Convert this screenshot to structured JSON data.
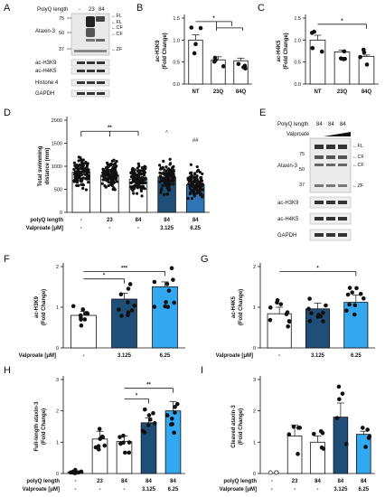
{
  "panel_letters": [
    "A",
    "B",
    "C",
    "D",
    "E",
    "F",
    "G",
    "H",
    "I"
  ],
  "blot_A": {
    "header": "PolyQ length",
    "lanes": [
      "-",
      "23",
      "84"
    ],
    "markers": [
      "75",
      "50",
      "37"
    ],
    "bands": [
      "ataxin-3",
      "ac-H3K9",
      "ac-H4K5",
      "Histone 4",
      "GAPDH"
    ],
    "labels": {
      "ataxin3": "Ataxin-3",
      "h3k9": "ac-H3K9",
      "h4k5": "ac-H4K5",
      "h4": "Histone 4",
      "gapdh": "GAPDH"
    },
    "arrows": [
      "FL",
      "FL",
      "CF",
      "CF",
      "ZF"
    ]
  },
  "blot_E": {
    "header": "PolyQ length",
    "lanes": [
      "84",
      "84",
      "84"
    ],
    "valproate": "Valproate",
    "markers": [
      "75",
      "50",
      "37"
    ],
    "labels": {
      "ataxin3": "Ataxin-3",
      "h3k9": "ac-H3K9",
      "h4k5": "ac-H4K5",
      "gapdh": "GAPDH"
    },
    "arrows": [
      "FL",
      "CF",
      "CF",
      "ZF"
    ]
  },
  "colors": {
    "white": "#ffffff",
    "navy": "#1f4e79",
    "mid": "#2e75b6",
    "light": "#33a7f0"
  },
  "chart_data": [
    {
      "id": "B",
      "type": "bar",
      "ylabel": "ac-H3K9\n(Fold Change)",
      "categories": [
        "NT",
        "23Q",
        "84Q"
      ],
      "values": [
        1.0,
        0.55,
        0.53
      ],
      "errors": [
        0.12,
        0.07,
        0.06
      ],
      "ylim": [
        0,
        1.5
      ],
      "yticks": [
        "0.0",
        "0.5",
        "1.0",
        "1.5"
      ],
      "sig": [
        "*"
      ]
    },
    {
      "id": "C",
      "type": "bar",
      "ylabel": "ac-H4K5\n(Fold Change)",
      "categories": [
        "NT",
        "23Q",
        "84Q"
      ],
      "values": [
        1.0,
        0.73,
        0.63
      ],
      "errors": [
        0.11,
        0.04,
        0.03
      ],
      "ylim": [
        0,
        1.5
      ],
      "yticks": [
        "0.0",
        "0.5",
        "1.0",
        "1.5"
      ],
      "sig": [
        "*"
      ]
    },
    {
      "id": "D",
      "type": "bar",
      "ylabel": "Total swimming\ndistance (mm)",
      "ylim": [
        0,
        2000
      ],
      "yticks": [
        "0",
        "500",
        "1000",
        "1500",
        "2000"
      ],
      "row_labels": [
        "polyQ length",
        "Valproate [μM]"
      ],
      "row1": [
        "-",
        "23",
        "84",
        "84",
        "84"
      ],
      "row2": [
        "-",
        "-",
        "-",
        "3.125",
        "6.25"
      ],
      "values": [
        870,
        810,
        720,
        770,
        600
      ],
      "errors": [
        30,
        25,
        25,
        35,
        40
      ],
      "sig": [
        "**",
        "^",
        "##"
      ]
    },
    {
      "id": "F",
      "type": "bar",
      "ylabel": "ac-H3K9\n(Fold Change)",
      "xlabel_row": "Valproate [μM]",
      "categories": [
        "-",
        "3.125",
        "6.25"
      ],
      "values": [
        1.0,
        1.5,
        1.88
      ],
      "errors": [
        0.12,
        0.18,
        0.15
      ],
      "ylim": [
        0,
        2.5
      ],
      "yticks": [
        "0",
        "1",
        "2"
      ],
      "sig": [
        "***",
        "*"
      ]
    },
    {
      "id": "G",
      "type": "bar",
      "ylabel": "ac-H4K5\n(Fold Change)",
      "xlabel_row": "Valproate [μM]",
      "categories": [
        "-",
        "3.125",
        "6.25"
      ],
      "values": [
        1.05,
        1.2,
        1.4
      ],
      "errors": [
        0.2,
        0.18,
        0.22
      ],
      "ylim": [
        0,
        2.5
      ],
      "yticks": [
        "0",
        "1",
        "2"
      ],
      "sig": [
        "*"
      ]
    },
    {
      "id": "H",
      "type": "bar",
      "ylabel": "Full-length ataxin-3\n(Fold Change)",
      "ylim": [
        0,
        3
      ],
      "yticks": [
        "0",
        "1",
        "2",
        "3"
      ],
      "row_labels": [
        "polyQ length",
        "Valproate [μM]"
      ],
      "row1": [
        "-",
        "23",
        "84",
        "84",
        "84"
      ],
      "row2": [
        "-",
        "-",
        "-",
        "3.125",
        "6.25"
      ],
      "values": [
        0.05,
        1.1,
        1.02,
        1.62,
        2.0
      ],
      "errors": [
        0.03,
        0.25,
        0.18,
        0.15,
        0.3
      ],
      "sig": [
        "**",
        "*"
      ]
    },
    {
      "id": "I",
      "type": "bar",
      "ylabel": "Cleaved ataxin-3\n(Fold Change)",
      "ylim": [
        0,
        3
      ],
      "yticks": [
        "0",
        "1",
        "2",
        "3"
      ],
      "row_labels": [
        "polyQ length",
        "Valproate [μM]"
      ],
      "row1": [
        "-",
        "23",
        "84",
        "84",
        "84"
      ],
      "row2": [
        "-",
        "-",
        "-",
        "3.125",
        "6.25"
      ],
      "values": [
        0.0,
        1.2,
        1.0,
        1.8,
        1.25
      ],
      "errors": [
        0.0,
        0.35,
        0.2,
        0.45,
        0.1
      ],
      "sig": []
    }
  ]
}
